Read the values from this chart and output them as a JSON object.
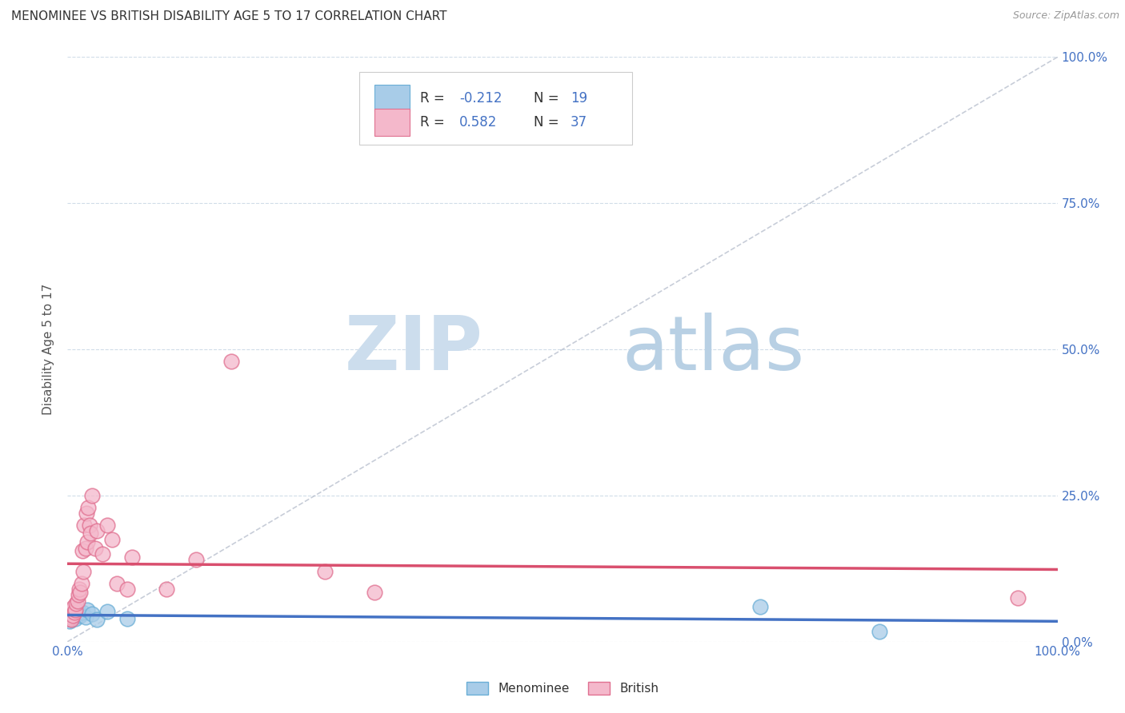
{
  "title": "MENOMINEE VS BRITISH DISABILITY AGE 5 TO 17 CORRELATION CHART",
  "source": "Source: ZipAtlas.com",
  "ylabel": "Disability Age 5 to 17",
  "x_tick_labels_show": [
    "0.0%",
    "100.0%"
  ],
  "x_tick_pos_show": [
    0.0,
    1.0
  ],
  "y_ticks": [
    0.0,
    0.25,
    0.5,
    0.75,
    1.0
  ],
  "y_tick_labels_right": [
    "0.0%",
    "25.0%",
    "50.0%",
    "75.0%",
    "100.0%"
  ],
  "menominee_color": "#a8cce8",
  "menominee_edge": "#6aaed6",
  "british_color": "#f4b8cb",
  "british_edge": "#e07090",
  "trend_menominee_color": "#4472c4",
  "trend_british_color": "#d94f6e",
  "diagonal_color": "#b0b8c8",
  "watermark_zip_color": "#cde0f0",
  "watermark_atlas_color": "#b8d4e8",
  "legend_R_color": "#333333",
  "legend_N_color": "#4472c4",
  "legend_val_color": "#4472c4",
  "background_color": "#ffffff",
  "grid_color": "#d0dce8",
  "axis_label_color": "#4472c4",
  "title_fontsize": 11,
  "label_fontsize": 11,
  "tick_fontsize": 11,
  "menominee_x": [
    0.002,
    0.003,
    0.004,
    0.005,
    0.006,
    0.007,
    0.008,
    0.009,
    0.01,
    0.011,
    0.013,
    0.015,
    0.018,
    0.02,
    0.025,
    0.03,
    0.04,
    0.06,
    0.7,
    0.82
  ],
  "menominee_y": [
    0.035,
    0.04,
    0.038,
    0.042,
    0.045,
    0.048,
    0.04,
    0.05,
    0.055,
    0.052,
    0.045,
    0.05,
    0.042,
    0.055,
    0.048,
    0.038,
    0.052,
    0.04,
    0.06,
    0.018
  ],
  "british_x": [
    0.002,
    0.003,
    0.004,
    0.005,
    0.006,
    0.007,
    0.008,
    0.009,
    0.01,
    0.011,
    0.012,
    0.013,
    0.014,
    0.015,
    0.016,
    0.017,
    0.018,
    0.019,
    0.02,
    0.021,
    0.022,
    0.023,
    0.025,
    0.028,
    0.03,
    0.035,
    0.04,
    0.045,
    0.05,
    0.06,
    0.065,
    0.1,
    0.13,
    0.165,
    0.26,
    0.31,
    0.96
  ],
  "british_y": [
    0.04,
    0.042,
    0.038,
    0.045,
    0.06,
    0.05,
    0.055,
    0.065,
    0.07,
    0.08,
    0.09,
    0.085,
    0.1,
    0.155,
    0.12,
    0.2,
    0.16,
    0.22,
    0.17,
    0.23,
    0.2,
    0.185,
    0.25,
    0.16,
    0.19,
    0.15,
    0.2,
    0.175,
    0.1,
    0.09,
    0.145,
    0.09,
    0.14,
    0.48,
    0.12,
    0.085,
    0.075
  ]
}
